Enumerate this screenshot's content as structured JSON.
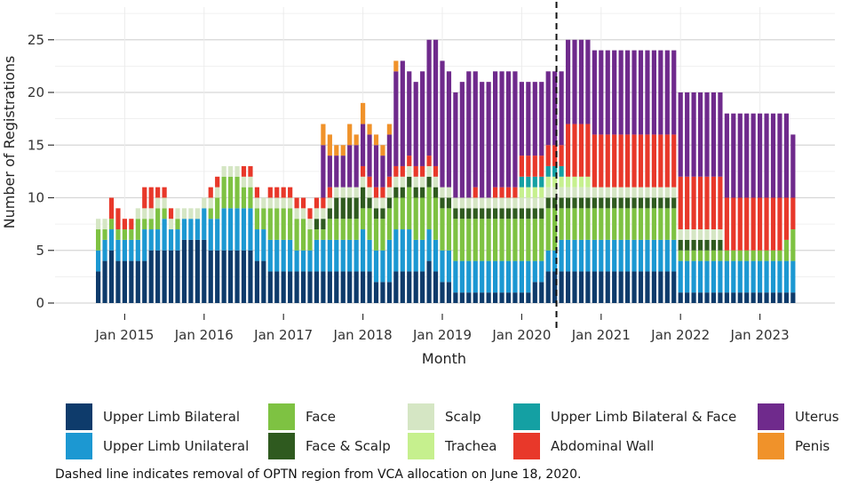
{
  "chart_data": {
    "type": "bar",
    "stacked": true,
    "title": "",
    "xlabel": "Month",
    "ylabel": "Number of Registrations",
    "ylim": [
      0,
      27
    ],
    "yticks": [
      0,
      5,
      10,
      15,
      20,
      25
    ],
    "grid": true,
    "legend_position": "bottom",
    "x_tick_labels": [
      "Jan 2015",
      "Jan 2016",
      "Jan 2017",
      "Jan 2018",
      "Jan 2019",
      "Jan 2020",
      "Jan 2021",
      "Jan 2022",
      "Jan 2023"
    ],
    "x_start_month": "2014-09",
    "cutoff_label": "June 2020",
    "cutoff_index": 69.6,
    "categories_note": "Months Sep 2014 through Jun 2023 (106 bars)",
    "series": [
      {
        "name": "Upper Limb Bilateral",
        "color": "#0e3b6b",
        "values": [
          3,
          4,
          5,
          4,
          4,
          4,
          4,
          4,
          5,
          5,
          5,
          5,
          5,
          6,
          6,
          6,
          6,
          5,
          5,
          5,
          5,
          5,
          5,
          5,
          4,
          4,
          3,
          3,
          3,
          3,
          3,
          3,
          3,
          3,
          3,
          3,
          3,
          3,
          3,
          3,
          3,
          3,
          2,
          2,
          2,
          3,
          3,
          3,
          3,
          3,
          4,
          3,
          2,
          2,
          1,
          1,
          1,
          1,
          1,
          1,
          1,
          1,
          1,
          1,
          1,
          1,
          2,
          2,
          3,
          3,
          3,
          3,
          3,
          3,
          3,
          3,
          3,
          3,
          3,
          3,
          3,
          3,
          3,
          3,
          3,
          3,
          3,
          3,
          1,
          1,
          1,
          1,
          1,
          1,
          1,
          1,
          1,
          1,
          1,
          1,
          1,
          1,
          1,
          1,
          1,
          1
        ]
      },
      {
        "name": "Upper Limb Unilateral",
        "color": "#1c98d2",
        "values": [
          2,
          2,
          2,
          2,
          2,
          2,
          2,
          3,
          2,
          2,
          3,
          2,
          2,
          2,
          2,
          2,
          3,
          3,
          3,
          4,
          4,
          4,
          4,
          4,
          3,
          3,
          3,
          3,
          3,
          3,
          2,
          2,
          2,
          3,
          3,
          3,
          3,
          3,
          3,
          3,
          4,
          3,
          3,
          3,
          4,
          4,
          4,
          4,
          3,
          3,
          3,
          3,
          3,
          3,
          3,
          3,
          3,
          3,
          3,
          3,
          3,
          3,
          3,
          3,
          3,
          3,
          2,
          2,
          2,
          2,
          3,
          3,
          3,
          3,
          3,
          3,
          3,
          3,
          3,
          3,
          3,
          3,
          3,
          3,
          3,
          3,
          3,
          3,
          3,
          3,
          3,
          3,
          3,
          3,
          3,
          3,
          3,
          3,
          3,
          3,
          3,
          3,
          3,
          3,
          3,
          3
        ]
      },
      {
        "name": "Face",
        "color": "#7ec242",
        "values": [
          2,
          1,
          1,
          1,
          1,
          1,
          2,
          1,
          1,
          2,
          1,
          0,
          1,
          0,
          0,
          0,
          0,
          1,
          2,
          3,
          3,
          3,
          2,
          2,
          2,
          2,
          3,
          3,
          3,
          3,
          3,
          3,
          2,
          1,
          1,
          2,
          2,
          2,
          2,
          2,
          2,
          3,
          3,
          3,
          3,
          3,
          3,
          4,
          4,
          4,
          4,
          4,
          4,
          4,
          4,
          4,
          4,
          4,
          4,
          4,
          4,
          4,
          4,
          4,
          4,
          4,
          4,
          4,
          4,
          4,
          3,
          3,
          3,
          3,
          3,
          3,
          3,
          3,
          3,
          3,
          3,
          3,
          3,
          3,
          3,
          3,
          3,
          3,
          1,
          1,
          1,
          1,
          1,
          1,
          1,
          1,
          1,
          1,
          1,
          1,
          1,
          1,
          1,
          1,
          2,
          3
        ]
      },
      {
        "name": "Face & Scalp",
        "color": "#2f5a1f",
        "values": [
          0,
          0,
          0,
          0,
          0,
          0,
          0,
          0,
          0,
          0,
          0,
          0,
          0,
          0,
          0,
          0,
          0,
          0,
          0,
          0,
          0,
          0,
          0,
          0,
          0,
          0,
          0,
          0,
          0,
          0,
          0,
          0,
          0,
          1,
          1,
          1,
          2,
          2,
          2,
          2,
          2,
          1,
          1,
          1,
          1,
          1,
          1,
          1,
          1,
          1,
          1,
          1,
          1,
          1,
          1,
          1,
          1,
          1,
          1,
          1,
          1,
          1,
          1,
          1,
          1,
          1,
          1,
          1,
          1,
          1,
          1,
          1,
          1,
          1,
          1,
          1,
          1,
          1,
          1,
          1,
          1,
          1,
          1,
          1,
          1,
          1,
          1,
          1,
          1,
          1,
          1,
          1,
          1,
          1,
          1,
          0,
          0,
          0,
          0,
          0,
          0,
          0,
          0,
          0,
          0,
          0
        ]
      },
      {
        "name": "Scalp",
        "color": "#d5e6c4",
        "values": [
          1,
          1,
          0,
          0,
          0,
          0,
          1,
          1,
          1,
          1,
          1,
          1,
          1,
          1,
          1,
          1,
          1,
          1,
          1,
          1,
          1,
          1,
          1,
          1,
          1,
          1,
          1,
          1,
          1,
          1,
          1,
          1,
          1,
          1,
          1,
          1,
          1,
          1,
          1,
          1,
          1,
          1,
          1,
          1,
          1,
          1,
          1,
          1,
          1,
          1,
          1,
          1,
          1,
          1,
          1,
          1,
          1,
          1,
          1,
          1,
          1,
          1,
          1,
          1,
          1,
          1,
          1,
          1,
          1,
          1,
          1,
          1,
          1,
          1,
          1,
          1,
          1,
          1,
          1,
          1,
          1,
          1,
          1,
          1,
          1,
          1,
          1,
          1,
          1,
          1,
          1,
          1,
          1,
          1,
          1,
          0,
          0,
          0,
          0,
          0,
          0,
          0,
          0,
          0,
          0,
          0
        ]
      },
      {
        "name": "Trachea",
        "color": "#c6f08e",
        "values": [
          0,
          0,
          0,
          0,
          0,
          0,
          0,
          0,
          0,
          0,
          0,
          0,
          0,
          0,
          0,
          0,
          0,
          0,
          0,
          0,
          0,
          0,
          0,
          0,
          0,
          0,
          0,
          0,
          0,
          0,
          0,
          0,
          0,
          0,
          0,
          0,
          0,
          0,
          0,
          0,
          0,
          0,
          0,
          0,
          0,
          0,
          0,
          0,
          0,
          0,
          0,
          0,
          0,
          0,
          0,
          0,
          0,
          0,
          0,
          0,
          0,
          0,
          0,
          0,
          1,
          1,
          1,
          1,
          1,
          1,
          1,
          1,
          1,
          1,
          1,
          0,
          0,
          0,
          0,
          0,
          0,
          0,
          0,
          0,
          0,
          0,
          0,
          0,
          0,
          0,
          0,
          0,
          0,
          0,
          0,
          0,
          0,
          0,
          0,
          0,
          0,
          0,
          0,
          0,
          0,
          0
        ]
      },
      {
        "name": "Upper Limb Bilateral & Face",
        "color": "#14a0a3",
        "values": [
          0,
          0,
          0,
          0,
          0,
          0,
          0,
          0,
          0,
          0,
          0,
          0,
          0,
          0,
          0,
          0,
          0,
          0,
          0,
          0,
          0,
          0,
          0,
          0,
          0,
          0,
          0,
          0,
          0,
          0,
          0,
          0,
          0,
          0,
          0,
          0,
          0,
          0,
          0,
          0,
          0,
          0,
          0,
          0,
          0,
          0,
          0,
          0,
          0,
          0,
          0,
          0,
          0,
          0,
          0,
          0,
          0,
          0,
          0,
          0,
          0,
          0,
          0,
          0,
          1,
          1,
          1,
          1,
          1,
          1,
          1,
          0,
          0,
          0,
          0,
          0,
          0,
          0,
          0,
          0,
          0,
          0,
          0,
          0,
          0,
          0,
          0,
          0,
          0,
          0,
          0,
          0,
          0,
          0,
          0,
          0,
          0,
          0,
          0,
          0,
          0,
          0,
          0,
          0,
          0,
          0
        ]
      },
      {
        "name": "Abdominal Wall",
        "color": "#e8382a",
        "values": [
          0,
          0,
          2,
          2,
          1,
          1,
          0,
          2,
          2,
          1,
          1,
          1,
          0,
          0,
          0,
          0,
          0,
          1,
          1,
          0,
          0,
          0,
          1,
          1,
          1,
          0,
          1,
          1,
          1,
          1,
          1,
          1,
          1,
          1,
          1,
          1,
          0,
          0,
          0,
          0,
          1,
          1,
          1,
          1,
          1,
          1,
          1,
          1,
          1,
          1,
          1,
          1,
          0,
          0,
          0,
          0,
          0,
          1,
          0,
          0,
          1,
          1,
          1,
          1,
          2,
          2,
          2,
          2,
          2,
          2,
          2,
          5,
          5,
          5,
          5,
          5,
          5,
          5,
          5,
          5,
          5,
          5,
          5,
          5,
          5,
          5,
          5,
          5,
          5,
          5,
          5,
          5,
          5,
          5,
          5,
          5,
          5,
          5,
          5,
          5,
          5,
          5,
          5,
          5,
          4,
          3
        ]
      },
      {
        "name": "Uterus",
        "color": "#6f2a8c",
        "values": [
          0,
          0,
          0,
          0,
          0,
          0,
          0,
          0,
          0,
          0,
          0,
          0,
          0,
          0,
          0,
          0,
          0,
          0,
          0,
          0,
          0,
          0,
          0,
          0,
          0,
          0,
          0,
          0,
          0,
          0,
          0,
          0,
          0,
          0,
          5,
          3,
          3,
          3,
          4,
          4,
          4,
          4,
          4,
          3,
          4,
          9,
          10,
          8,
          8,
          9,
          11,
          12,
          12,
          11,
          10,
          11,
          12,
          11,
          11,
          11,
          11,
          11,
          11,
          11,
          7,
          7,
          7,
          7,
          7,
          7,
          7,
          8,
          8,
          8,
          8,
          8,
          8,
          8,
          8,
          8,
          8,
          8,
          8,
          8,
          8,
          8,
          8,
          8,
          8,
          8,
          8,
          8,
          8,
          8,
          8,
          8,
          8,
          8,
          8,
          8,
          8,
          8,
          8,
          8,
          8,
          6
        ]
      },
      {
        "name": "Penis",
        "color": "#f0922a",
        "values": [
          0,
          0,
          0,
          0,
          0,
          0,
          0,
          0,
          0,
          0,
          0,
          0,
          0,
          0,
          0,
          0,
          0,
          0,
          0,
          0,
          0,
          0,
          0,
          0,
          0,
          0,
          0,
          0,
          0,
          0,
          0,
          0,
          0,
          0,
          2,
          2,
          1,
          1,
          2,
          1,
          2,
          1,
          1,
          1,
          1,
          1,
          0,
          0,
          0,
          0,
          0,
          0,
          0,
          0,
          0,
          0,
          0,
          0,
          0,
          0,
          0,
          0,
          0,
          0,
          0,
          0,
          0,
          0,
          0,
          0,
          0,
          0,
          0,
          0,
          0,
          0,
          0,
          0,
          0,
          0,
          0,
          0,
          0,
          0,
          0,
          0,
          0,
          0,
          0,
          0,
          0,
          0,
          0,
          0,
          0,
          0,
          0,
          0,
          0,
          0,
          0,
          0,
          0,
          0,
          0,
          0
        ]
      }
    ]
  },
  "legend": {
    "items": [
      {
        "label": "Upper Limb Bilateral",
        "color": "#0e3b6b"
      },
      {
        "label": "Upper Limb Unilateral",
        "color": "#1c98d2"
      },
      {
        "label": "Face",
        "color": "#7ec242"
      },
      {
        "label": "Face & Scalp",
        "color": "#2f5a1f"
      },
      {
        "label": "Scalp",
        "color": "#d5e6c4"
      },
      {
        "label": "Trachea",
        "color": "#c6f08e"
      },
      {
        "label": "Upper Limb Bilateral & Face",
        "color": "#14a0a3"
      },
      {
        "label": "Abdominal Wall",
        "color": "#e8382a"
      },
      {
        "label": "Uterus",
        "color": "#6f2a8c"
      },
      {
        "label": "Penis",
        "color": "#f0922a"
      }
    ]
  },
  "caption": "Dashed line indicates removal of OPTN region from VCA allocation on June 18, 2020."
}
